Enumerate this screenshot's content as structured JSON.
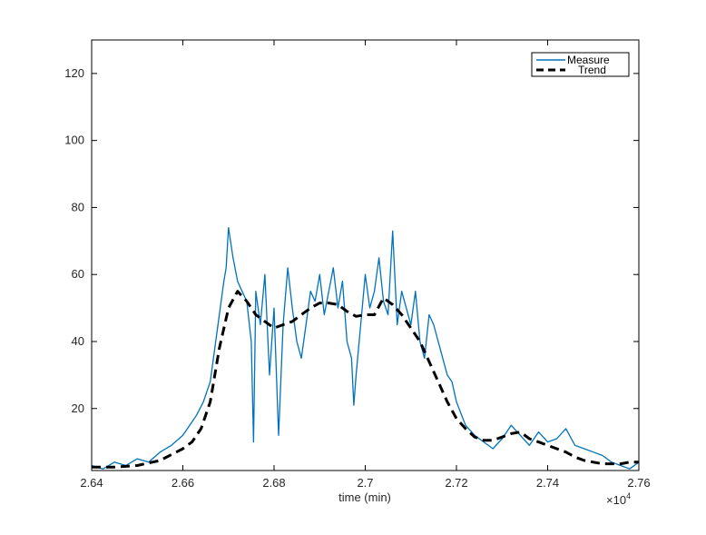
{
  "chart_data": {
    "type": "line",
    "title": "",
    "xlabel": "time (min)",
    "ylabel": "",
    "x_exponent_label": "×10",
    "x_exponent_power": "4",
    "xlim": [
      26400,
      27600
    ],
    "ylim": [
      1.5,
      130
    ],
    "xtick_values": [
      26400,
      26600,
      26800,
      27000,
      27200,
      27400,
      27600
    ],
    "xtick_labels": [
      "2.64",
      "2.66",
      "2.68",
      "2.7",
      "2.72",
      "2.74",
      "2.76"
    ],
    "ytick_values": [
      20,
      40,
      60,
      80,
      100,
      120
    ],
    "ytick_labels": [
      "20",
      "40",
      "60",
      "80",
      "100",
      "120"
    ],
    "grid": false,
    "legend_position": "top-right",
    "colors": {
      "Measure": "#0072bd",
      "Trend": "#000000"
    },
    "series": [
      {
        "name": "Measure",
        "style": "solid",
        "x": [
          26400,
          26425,
          26450,
          26475,
          26500,
          26525,
          26550,
          26575,
          26600,
          26615,
          26630,
          26645,
          26660,
          26670,
          26680,
          26690,
          26695,
          26700,
          26710,
          26720,
          26730,
          26740,
          26750,
          26755,
          26760,
          26770,
          26780,
          26790,
          26800,
          26810,
          26820,
          26830,
          26840,
          26850,
          26860,
          26870,
          26880,
          26890,
          26900,
          26910,
          26920,
          26930,
          26940,
          26950,
          26960,
          26970,
          26975,
          26980,
          26990,
          27000,
          27010,
          27020,
          27030,
          27040,
          27050,
          27060,
          27070,
          27080,
          27090,
          27100,
          27110,
          27120,
          27130,
          27140,
          27150,
          27160,
          27170,
          27180,
          27190,
          27200,
          27220,
          27240,
          27260,
          27280,
          27300,
          27320,
          27340,
          27360,
          27380,
          27400,
          27420,
          27440,
          27460,
          27480,
          27500,
          27520,
          27540,
          27560,
          27580,
          27600
        ],
        "y": [
          3,
          2,
          4,
          3,
          5,
          4,
          7,
          9,
          12,
          15,
          18,
          22,
          28,
          38,
          48,
          58,
          62,
          74,
          65,
          58,
          55,
          52,
          40,
          10,
          55,
          45,
          60,
          30,
          50,
          12,
          45,
          62,
          50,
          40,
          35,
          45,
          55,
          52,
          60,
          48,
          55,
          62,
          50,
          58,
          40,
          35,
          21,
          30,
          45,
          60,
          50,
          55,
          65,
          52,
          48,
          73,
          45,
          55,
          50,
          45,
          55,
          40,
          35,
          48,
          45,
          40,
          35,
          30,
          28,
          22,
          15,
          12,
          10,
          8,
          11,
          15,
          12,
          9,
          13,
          10,
          11,
          14,
          9,
          8,
          7,
          6,
          4,
          3,
          2,
          4
        ]
      },
      {
        "name": "Trend",
        "style": "dashed",
        "x": [
          26400,
          26450,
          26500,
          26550,
          26600,
          26620,
          26640,
          26660,
          26680,
          26700,
          26720,
          26740,
          26760,
          26780,
          26800,
          26820,
          26840,
          26860,
          26880,
          26900,
          26920,
          26940,
          26960,
          26980,
          27000,
          27020,
          27040,
          27060,
          27080,
          27100,
          27120,
          27140,
          27160,
          27180,
          27200,
          27220,
          27240,
          27260,
          27280,
          27300,
          27320,
          27340,
          27360,
          27380,
          27400,
          27420,
          27440,
          27460,
          27480,
          27500,
          27520,
          27540,
          27560,
          27580,
          27600
        ],
        "y": [
          2.5,
          2.5,
          3,
          4.5,
          8,
          10,
          14,
          22,
          38,
          50,
          55,
          52,
          48,
          46,
          44,
          45,
          46,
          48,
          50,
          51.5,
          51.5,
          51,
          49,
          47.5,
          48,
          48,
          53,
          51,
          48,
          44,
          40,
          34,
          28,
          22,
          17,
          14,
          11.5,
          10.5,
          10.5,
          11.5,
          12.5,
          13,
          11,
          10,
          9,
          8,
          7,
          5.5,
          4.5,
          4,
          3.5,
          3.5,
          3.5,
          4,
          4
        ]
      }
    ]
  }
}
